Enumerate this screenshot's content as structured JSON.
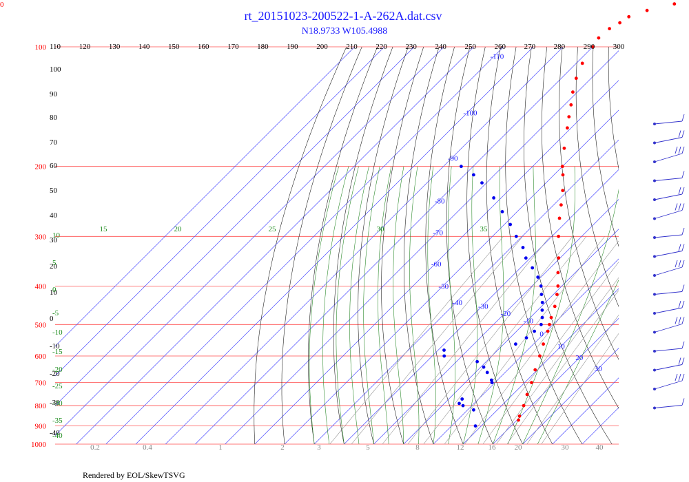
{
  "header": {
    "title": "rt_20151023-200522-1-A-262A.dat.csv",
    "subtitle": "N18.9733 W105.4988",
    "corner_label": "0",
    "footer": "Rendered by EOL/SkewTSVG"
  },
  "colors": {
    "isobar": "#ff4d4d",
    "isotherm": "#4d4dff",
    "dry_adiabat": "#222222",
    "moist_adiabat": "#2e8b2e",
    "mixing_ratio": "#999999",
    "temperature": "#ff0000",
    "dewpoint": "#0000ee",
    "wind": "#3333cc"
  },
  "chart_data": {
    "type": "skew-t",
    "title": "rt_20151023-200522-1-A-262A.dat.csv",
    "subtitle": "N18.9733 W105.4988",
    "ylim": [
      1000,
      100
    ],
    "pressure_ticks": [
      "100",
      "200",
      "300",
      "400",
      "500",
      "600",
      "700",
      "800",
      "900",
      "1000"
    ],
    "top_temperature_ticks": [
      "110",
      "120",
      "130",
      "140",
      "150",
      "160",
      "170",
      "180",
      "190",
      "200",
      "210",
      "220",
      "230",
      "240",
      "250",
      "260",
      "270",
      "280",
      "290",
      "300"
    ],
    "isotherm_labels": [
      "-110",
      "-100",
      "-90",
      "-80",
      "-70",
      "-60",
      "-50",
      "-40",
      "-30",
      "-20",
      "-10",
      "0",
      "10",
      "20",
      "30"
    ],
    "dry_adiabat_labels": [
      "100",
      "90",
      "80",
      "70",
      "60",
      "50",
      "40",
      "30",
      "20",
      "10",
      "0",
      "-10",
      "-20",
      "-30",
      "-40"
    ],
    "moist_adiabat_labels": [
      "15",
      "20",
      "25",
      "30",
      "35",
      "10",
      "5",
      "0",
      "-5",
      "-10",
      "-15",
      "-20",
      "-25",
      "-30",
      "-35",
      "-40"
    ],
    "mixing_ratio_labels": [
      "0.2",
      "0.4",
      "1",
      "2",
      "3",
      "5",
      "8",
      "12",
      "16",
      "20",
      "30",
      "40"
    ],
    "temperature_profile": {
      "name": "Temperature",
      "pressure": [
        870,
        850,
        800,
        750,
        700,
        650,
        600,
        560,
        520,
        500,
        480,
        450,
        420,
        400,
        370,
        340,
        300,
        270,
        250,
        230,
        210,
        200,
        180,
        160,
        150,
        140,
        130,
        120,
        110,
        100,
        95,
        90,
        87,
        84,
        81,
        78,
        75
      ],
      "temperature": [
        20.5,
        19.5,
        17.4,
        14.8,
        12.3,
        9.2,
        6.1,
        3.3,
        0.5,
        -1.2,
        -3.0,
        -5.5,
        -8.8,
        -11.3,
        -15.8,
        -20.5,
        -27.8,
        -33.6,
        -37.5,
        -41.8,
        -47.0,
        -50.0,
        -55.5,
        -61.3,
        -64.5,
        -67.8,
        -71.5,
        -75.0,
        -78.0,
        -80.0,
        -81.0,
        -80.5,
        -79.0,
        -78.0,
        -74.0,
        -67.0,
        -64.5
      ]
    },
    "dewpoint_profile": {
      "name": "Dew point",
      "pressure": [
        900,
        820,
        800,
        790,
        770,
        700,
        690,
        660,
        640,
        620,
        600,
        580,
        560,
        540,
        520,
        500,
        480,
        460,
        440,
        420,
        400,
        380,
        360,
        340,
        320,
        300,
        280,
        260,
        240,
        220,
        210,
        200
      ],
      "dewpoint": [
        8.0,
        2.0,
        -3.0,
        -5.0,
        -5.5,
        -1.0,
        -2.0,
        -6.0,
        -9.0,
        -13.0,
        -26.0,
        -28.0,
        -6.0,
        -4.5,
        -4.0,
        -4.0,
        -6.0,
        -8.5,
        -11.0,
        -14.0,
        -17.0,
        -21.0,
        -26.0,
        -31.5,
        -36.0,
        -42.0,
        -48.0,
        -55.0,
        -62.5,
        -71.5,
        -77.0,
        -84.0
      ]
    },
    "wind_barbs": {
      "note": "wind barbs at right margin",
      "count": 16
    }
  }
}
